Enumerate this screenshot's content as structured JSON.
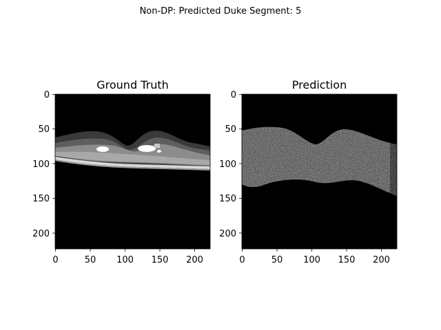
{
  "figure": {
    "suptitle": "Non-DP: Predicted Duke Segment: 5"
  },
  "panels": [
    {
      "title": "Ground Truth",
      "x_ticks": [
        "0",
        "50",
        "100",
        "150",
        "200"
      ],
      "y_ticks": [
        "0",
        "50",
        "100",
        "150",
        "200"
      ],
      "image_kind": "segmentation-mask"
    },
    {
      "title": "Prediction",
      "x_ticks": [
        "0",
        "50",
        "100",
        "150",
        "200"
      ],
      "y_ticks": [
        "0",
        "50",
        "100",
        "150",
        "200"
      ],
      "image_kind": "noisy-prediction"
    }
  ],
  "colors": {
    "background": "#000000",
    "layer_dark": "#3a3a3a",
    "layer_mid": "#6f6f6f",
    "layer_light": "#9a9a9a",
    "highlight": "#ffffff"
  }
}
